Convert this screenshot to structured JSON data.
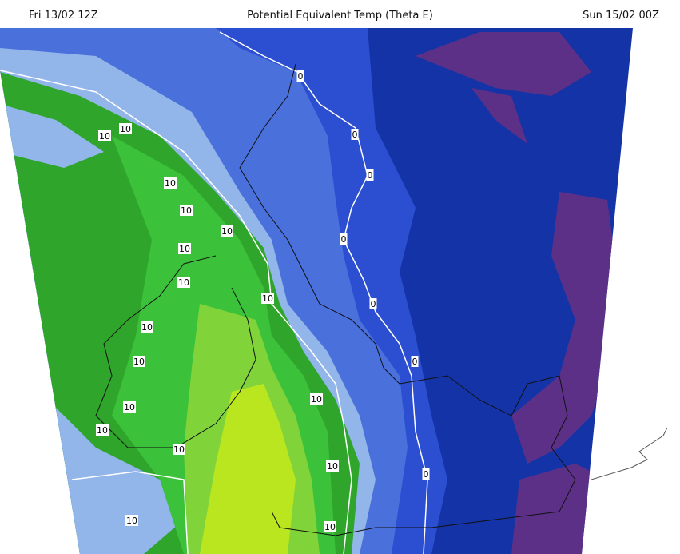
{
  "header": {
    "valid_from": "Fri 13/02 12Z",
    "title": "Potential Equivalent Temp (Theta E)",
    "valid_to": "Sun 15/02 00Z"
  },
  "colors": {
    "navy": "#1433a6",
    "purple": "#5d3088",
    "blue": "#2c4fd2",
    "mid_blue": "#4a70dc",
    "light_blue": "#92b6e9",
    "dark_green": "#2fa52b",
    "green": "#3cc23a",
    "light_green": "#80d43a",
    "yellow_green": "#b9e61e",
    "contour": "#ffffff",
    "coastline": "#111111"
  },
  "contour_labels": {
    "zero": [
      "0",
      "0",
      "0",
      "0",
      "0",
      "0",
      "0"
    ],
    "ten": [
      "10",
      "10",
      "10",
      "10",
      "10",
      "10",
      "10",
      "10",
      "10",
      "10",
      "10",
      "10",
      "10",
      "10",
      "10",
      "10",
      "10"
    ]
  }
}
